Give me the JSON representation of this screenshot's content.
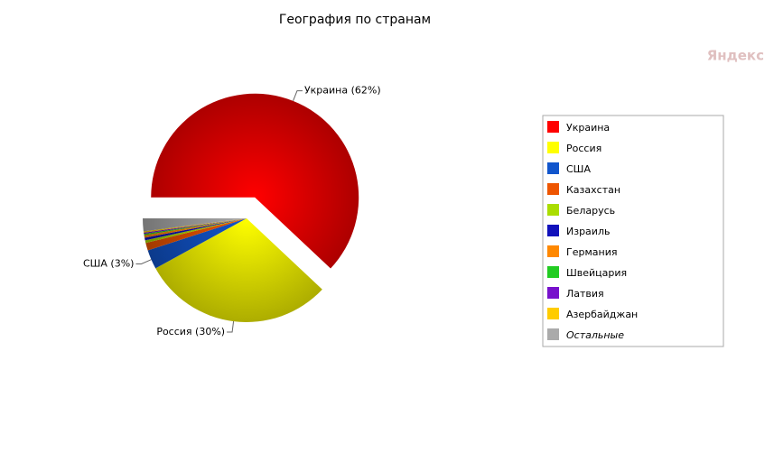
{
  "chart_data": {
    "type": "pie",
    "title": "География по странам",
    "watermark": "Яндекс",
    "categories": [
      "Украина",
      "Россия",
      "США",
      "Казахстан",
      "Беларусь",
      "Израиль",
      "Германия",
      "Швейцария",
      "Латвия",
      "Азербайджан",
      "Остальные"
    ],
    "values": [
      62,
      30,
      3,
      1.2,
      0.4,
      0.4,
      0.4,
      0.2,
      0.2,
      0.2,
      2
    ],
    "value_labels": [
      "Украина (62%)",
      "Россия (30%)",
      "США (3%)",
      null,
      null,
      null,
      null,
      null,
      null,
      null,
      null
    ],
    "colors": [
      "#ff0000",
      "#ffff00",
      "#1155cc",
      "#ee5500",
      "#aadd00",
      "#1111bb",
      "#ff8800",
      "#22cc22",
      "#7711cc",
      "#ffcc00",
      "#aaaaaa"
    ],
    "exploded": [
      0
    ],
    "legend": "right"
  }
}
